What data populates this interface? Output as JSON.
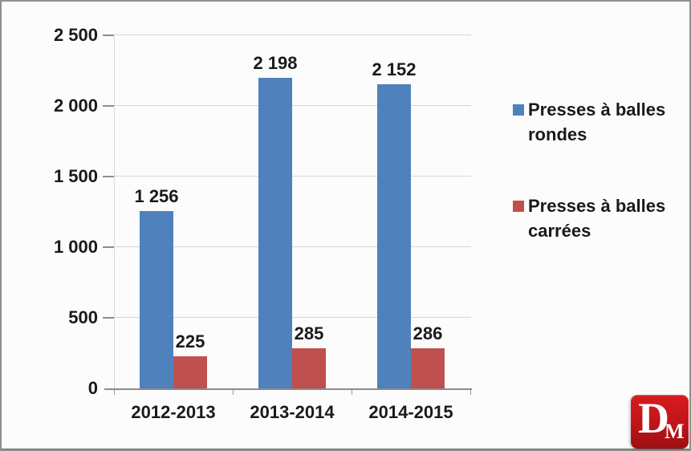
{
  "chart_data": {
    "type": "bar",
    "title": "",
    "categories": [
      "2012-2013",
      "2013-2014",
      "2014-2015"
    ],
    "series": [
      {
        "name": "Presses à balles rondes",
        "legend_lines": [
          "Presses à balles",
          "rondes"
        ],
        "color": "#4F81BD",
        "values": [
          1256,
          2198,
          2152
        ],
        "value_labels": [
          "1 256",
          "2 198",
          "2 152"
        ]
      },
      {
        "name": "Presses à balles carrées",
        "legend_lines": [
          "Presses à balles",
          "carrées"
        ],
        "color": "#C0504D",
        "values": [
          225,
          285,
          286
        ],
        "value_labels": [
          "225",
          "285",
          "286"
        ]
      }
    ],
    "y_axis": {
      "min": 0,
      "max": 2500,
      "step": 500,
      "tick_labels": [
        "0",
        "500",
        "1 000",
        "1 500",
        "2 000",
        "2 500"
      ]
    },
    "grid": true,
    "legend_position": "right"
  },
  "colors": {
    "series_rondes": "#4F81BD",
    "series_carrees": "#C0504D",
    "gridline": "#D6D6D6",
    "axis": "#8C8C8C",
    "text": "#1A1A1A",
    "logo_red": "#C4161A"
  },
  "logo": {
    "letter_main": "D",
    "letter_sub": "M"
  }
}
